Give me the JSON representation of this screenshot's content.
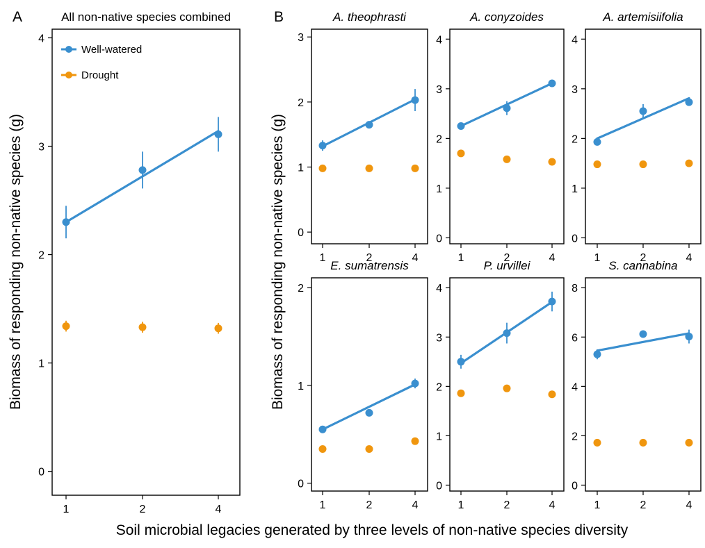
{
  "figure": {
    "panel_letters": [
      "A",
      "B"
    ],
    "ylabel": "Biomass of responding non-native species (g)",
    "xlabel": "Soil microbial legacies generated by three levels of non-native species diversity"
  },
  "legend": {
    "placement": "top-left of panel A",
    "entries": [
      {
        "label": "Well-watered",
        "color": "#3a8fcf"
      },
      {
        "label": "Drought",
        "color": "#f0960e"
      }
    ]
  },
  "colors": {
    "well_watered": "#3a8fcf",
    "drought": "#f0960e"
  },
  "chart_data": [
    {
      "type": "scatter",
      "title": "All non-native species combined",
      "x": [
        1,
        2,
        4
      ],
      "yticks": [
        0,
        1,
        2,
        3,
        4
      ],
      "ylim": [
        -0.22,
        4.08
      ],
      "series": [
        {
          "name": "Well-watered",
          "values": [
            2.3,
            2.78,
            3.11
          ],
          "errors": [
            0.15,
            0.17,
            0.16
          ],
          "fit": [
            2.3,
            2.72,
            3.14
          ]
        },
        {
          "name": "Drought",
          "values": [
            1.34,
            1.33,
            1.32
          ],
          "errors": [
            0.05,
            0.05,
            0.05
          ]
        }
      ]
    },
    {
      "type": "scatter",
      "title": "A. theophrasti",
      "x": [
        1,
        2,
        4
      ],
      "yticks": [
        0,
        1,
        2,
        3
      ],
      "ylim": [
        -0.18,
        3.12
      ],
      "series": [
        {
          "name": "Well-watered",
          "values": [
            1.33,
            1.65,
            2.03
          ],
          "errors": [
            0.08,
            0.04,
            0.17
          ],
          "fit": [
            1.32,
            1.68,
            2.04
          ]
        },
        {
          "name": "Drought",
          "values": [
            0.98,
            0.98,
            0.98
          ],
          "errors": [
            0.04,
            0.04,
            0.03
          ]
        }
      ]
    },
    {
      "type": "scatter",
      "title": "A. conyzoides",
      "x": [
        1,
        2,
        4
      ],
      "yticks": [
        0,
        1,
        2,
        3,
        4
      ],
      "ylim": [
        -0.12,
        4.2
      ],
      "series": [
        {
          "name": "Well-watered",
          "values": [
            2.25,
            2.61,
            3.11
          ],
          "errors": [
            0.04,
            0.14,
            0.06
          ],
          "fit": [
            2.25,
            2.68,
            3.11
          ]
        },
        {
          "name": "Drought",
          "values": [
            1.7,
            1.58,
            1.53
          ],
          "errors": [
            0.04,
            0.04,
            0.04
          ]
        }
      ]
    },
    {
      "type": "scatter",
      "title": "A. artemisiifolia",
      "x": [
        1,
        2,
        4
      ],
      "yticks": [
        0,
        1,
        2,
        3,
        4
      ],
      "ylim": [
        -0.12,
        4.2
      ],
      "series": [
        {
          "name": "Well-watered",
          "values": [
            1.93,
            2.55,
            2.73
          ],
          "errors": [
            0.05,
            0.14,
            0.05
          ],
          "fit": [
            2.0,
            2.4,
            2.81
          ]
        },
        {
          "name": "Drought",
          "values": [
            1.48,
            1.48,
            1.5
          ],
          "errors": [
            0.03,
            0.03,
            0.03
          ]
        }
      ]
    },
    {
      "type": "scatter",
      "title": "E. sumatrensis",
      "x": [
        1,
        2,
        4
      ],
      "yticks": [
        0,
        1,
        2
      ],
      "ylim": [
        -0.08,
        2.1
      ],
      "series": [
        {
          "name": "Well-watered",
          "values": [
            0.55,
            0.72,
            1.02
          ],
          "errors": [
            0.03,
            0.03,
            0.05
          ],
          "fit": [
            0.55,
            0.78,
            1.01
          ]
        },
        {
          "name": "Drought",
          "values": [
            0.35,
            0.35,
            0.43
          ],
          "errors": [
            0.02,
            0.02,
            0.03
          ]
        }
      ]
    },
    {
      "type": "scatter",
      "title": "P. urvillei",
      "x": [
        1,
        2,
        4
      ],
      "yticks": [
        0,
        1,
        2,
        3,
        4
      ],
      "ylim": [
        -0.12,
        4.2
      ],
      "series": [
        {
          "name": "Well-watered",
          "values": [
            2.5,
            3.08,
            3.72
          ],
          "errors": [
            0.14,
            0.21,
            0.2
          ],
          "fit": [
            2.47,
            3.09,
            3.71
          ]
        },
        {
          "name": "Drought",
          "values": [
            1.86,
            1.96,
            1.84
          ],
          "errors": [
            0.04,
            0.04,
            0.04
          ]
        }
      ]
    },
    {
      "type": "scatter",
      "title": "S. cannabina",
      "x": [
        1,
        2,
        4
      ],
      "yticks": [
        0,
        2,
        4,
        6,
        8
      ],
      "ylim": [
        -0.24,
        8.4
      ],
      "series": [
        {
          "name": "Well-watered",
          "values": [
            5.3,
            6.12,
            6.02
          ],
          "errors": [
            0.2,
            0.15,
            0.28
          ],
          "fit": [
            5.45,
            5.8,
            6.15
          ]
        },
        {
          "name": "Drought",
          "values": [
            1.72,
            1.72,
            1.72
          ],
          "errors": [
            0.05,
            0.05,
            0.05
          ]
        }
      ]
    }
  ]
}
